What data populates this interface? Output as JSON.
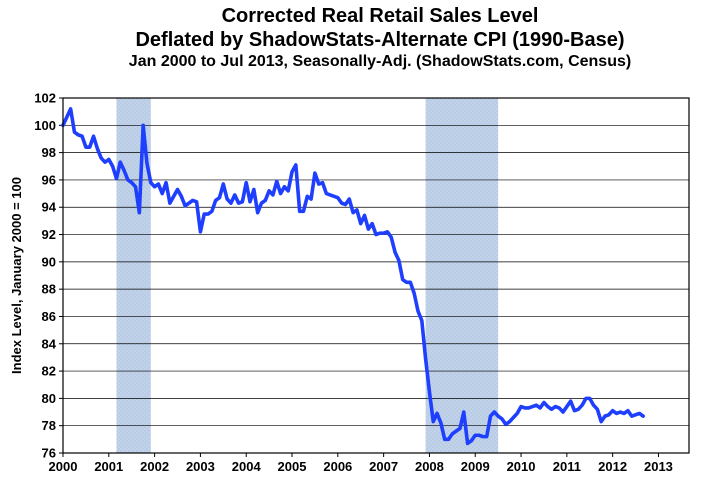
{
  "chart_data": {
    "type": "line",
    "title": "Corrected Real Retail Sales Level",
    "subtitle": "Deflated by ShadowStats-Alternate CPI (1990-Base)",
    "subtitle2": "Jan 2000 to Jul 2013, Seasonally-Adj. (ShadowStats.com, Census)",
    "ylabel": "Index Level, January 2000 = 100",
    "xlabel": "",
    "ylim": [
      76,
      102
    ],
    "xlim": [
      2000,
      2013.667
    ],
    "y_ticks": [
      "76",
      "78",
      "80",
      "82",
      "84",
      "86",
      "88",
      "90",
      "92",
      "94",
      "96",
      "98",
      "100",
      "102"
    ],
    "x_ticks": [
      "2000",
      "2001",
      "2002",
      "2003",
      "2004",
      "2005",
      "2006",
      "2007",
      "2008",
      "2009",
      "2010",
      "2011",
      "2012",
      "2013"
    ],
    "grid": true,
    "line_color": "#1f3fff",
    "recession_color": "#b9cce6",
    "recessions": [
      {
        "start": "2001-03",
        "end": "2001-11"
      },
      {
        "start": "2007-12",
        "end": "2009-06"
      }
    ],
    "series": [
      {
        "x_start": "2000-01",
        "frequency": "monthly",
        "values": [
          100.0,
          100.6,
          101.2,
          99.5,
          99.3,
          99.2,
          98.4,
          98.4,
          99.2,
          98.3,
          97.6,
          97.3,
          97.5,
          97.0,
          96.1,
          97.3,
          96.7,
          96.0,
          95.8,
          95.5,
          93.6,
          100.0,
          97.2,
          95.8,
          95.5,
          95.7,
          95.0,
          95.8,
          94.3,
          94.8,
          95.3,
          94.8,
          94.1,
          94.3,
          94.5,
          94.4,
          92.2,
          93.5,
          93.5,
          93.7,
          94.5,
          94.7,
          95.7,
          94.6,
          94.3,
          94.9,
          94.3,
          94.4,
          95.8,
          94.4,
          95.3,
          93.6,
          94.3,
          94.5,
          95.2,
          94.9,
          95.9,
          95.0,
          95.5,
          95.2,
          96.6,
          97.1,
          93.7,
          93.7,
          94.8,
          94.6,
          96.5,
          95.7,
          95.8,
          95.0,
          94.9,
          94.8,
          94.7,
          94.3,
          94.2,
          94.6,
          93.6,
          93.8,
          92.8,
          93.4,
          92.4,
          92.8,
          92.0,
          92.1,
          92.1,
          92.2,
          91.8,
          90.7,
          90.1,
          88.7,
          88.5,
          88.5,
          87.7,
          86.4,
          85.7,
          82.9,
          80.5,
          78.3,
          78.9,
          78.2,
          77.0,
          77.0,
          77.4,
          77.6,
          77.8,
          79.0,
          76.7,
          76.9,
          77.3,
          77.3,
          77.2,
          77.2,
          78.7,
          79.0,
          78.7,
          78.5,
          78.1,
          78.3,
          78.6,
          78.9,
          79.4,
          79.3,
          79.3,
          79.4,
          79.5,
          79.3,
          79.7,
          79.4,
          79.2,
          79.4,
          79.3,
          79.0,
          79.4,
          79.8,
          79.1,
          79.2,
          79.5,
          80.0,
          80.0,
          79.5,
          79.2,
          78.3,
          78.7,
          78.8,
          79.1,
          78.9,
          79.0,
          78.9,
          79.1,
          78.7,
          78.8,
          78.9,
          78.7
        ]
      }
    ]
  }
}
